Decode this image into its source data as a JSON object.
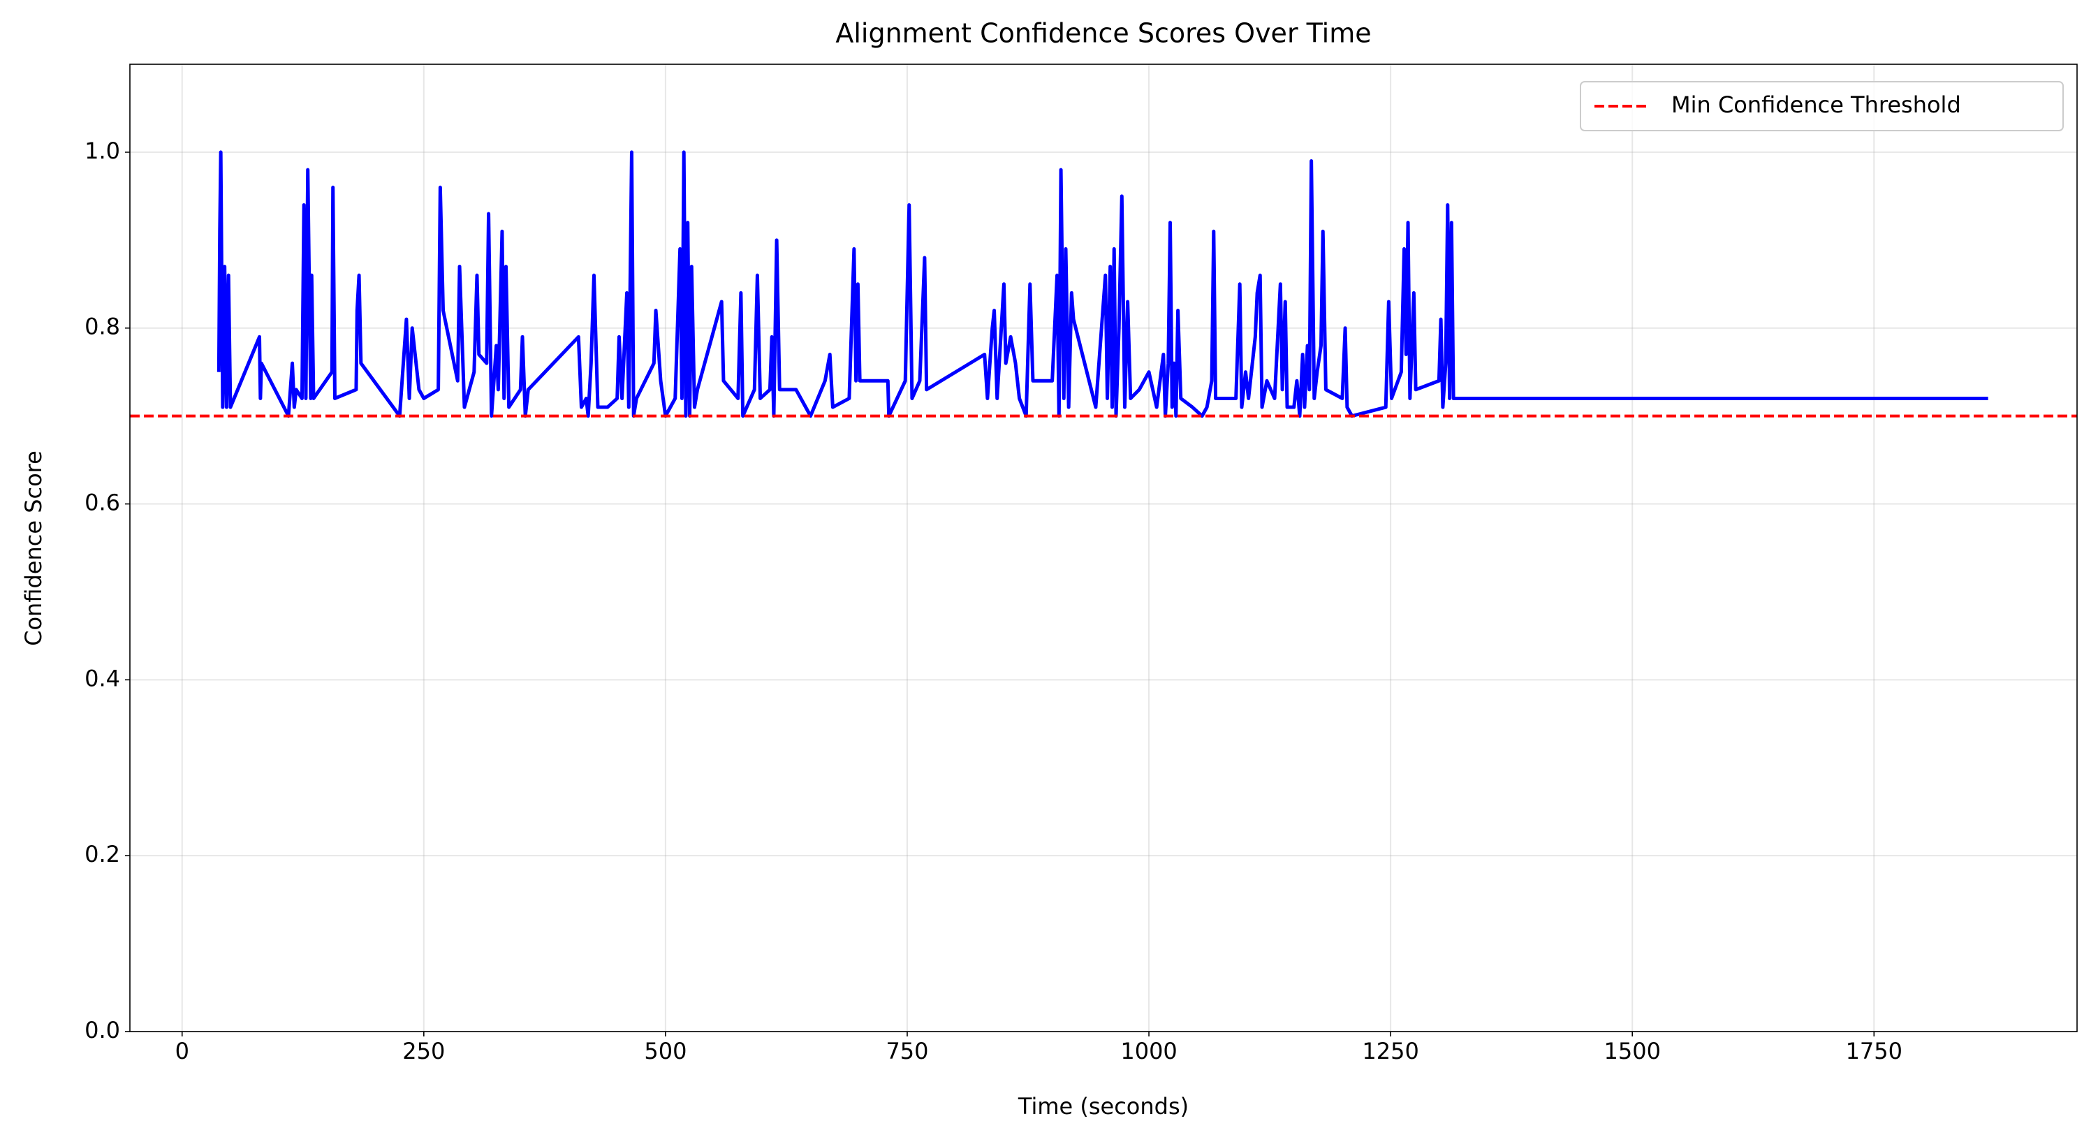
{
  "chart_data": {
    "type": "line",
    "title": "Alignment Confidence Scores Over Time",
    "x_label": "Time (seconds)",
    "y_label": "Confidence Score",
    "x": [
      38,
      39,
      40,
      42,
      44,
      46,
      48,
      50,
      80,
      81,
      82,
      110,
      114,
      116,
      118,
      124,
      126,
      128,
      130,
      133,
      134,
      136,
      155,
      156,
      158,
      180,
      181,
      183,
      185,
      225,
      232,
      235,
      238,
      245,
      250,
      265,
      267,
      270,
      285,
      287,
      292,
      302,
      305,
      307,
      315,
      317,
      320,
      325,
      327,
      331,
      333,
      335,
      338,
      350,
      352,
      355,
      358,
      410,
      413,
      418,
      420,
      423,
      426,
      430,
      440,
      450,
      452,
      455,
      460,
      462,
      465,
      467,
      470,
      488,
      490,
      495,
      500,
      510,
      515,
      517,
      519,
      521,
      523,
      525,
      527,
      530,
      533,
      558,
      560,
      575,
      578,
      580,
      592,
      595,
      598,
      608,
      610,
      612,
      615,
      618,
      635,
      650,
      665,
      670,
      673,
      690,
      695,
      697,
      699,
      701,
      730,
      731,
      748,
      752,
      755,
      763,
      768,
      770,
      830,
      833,
      838,
      840,
      843,
      850,
      852,
      857,
      862,
      866,
      873,
      877,
      880,
      900,
      905,
      907,
      909,
      912,
      914,
      917,
      920,
      922,
      945,
      955,
      957,
      960,
      962,
      964,
      966,
      969,
      972,
      975,
      978,
      981,
      990,
      1000,
      1008,
      1015,
      1017,
      1020,
      1022,
      1024,
      1026,
      1028,
      1030,
      1033,
      1045,
      1055,
      1060,
      1065,
      1067,
      1069,
      1080,
      1090,
      1094,
      1096,
      1100,
      1103,
      1110,
      1112,
      1115,
      1117,
      1122,
      1130,
      1136,
      1138,
      1141,
      1143,
      1150,
      1153,
      1156,
      1159,
      1161,
      1164,
      1166,
      1168,
      1171,
      1174,
      1178,
      1180,
      1183,
      1200,
      1203,
      1205,
      1210,
      1245,
      1248,
      1251,
      1261,
      1264,
      1266,
      1268,
      1270,
      1274,
      1276,
      1300,
      1302,
      1304,
      1307,
      1309,
      1311,
      1313,
      1315,
      1868
    ],
    "series": [
      {
        "color": "#0000ff",
        "values": [
          0.75,
          0.91,
          1.0,
          0.71,
          0.87,
          0.71,
          0.86,
          0.71,
          0.79,
          0.72,
          0.76,
          0.7,
          0.76,
          0.71,
          0.73,
          0.72,
          0.94,
          0.72,
          0.98,
          0.72,
          0.86,
          0.72,
          0.75,
          0.96,
          0.72,
          0.73,
          0.82,
          0.86,
          0.76,
          0.7,
          0.81,
          0.72,
          0.8,
          0.73,
          0.72,
          0.73,
          0.96,
          0.82,
          0.74,
          0.87,
          0.71,
          0.75,
          0.86,
          0.77,
          0.76,
          0.93,
          0.7,
          0.78,
          0.73,
          0.91,
          0.72,
          0.87,
          0.71,
          0.73,
          0.79,
          0.7,
          0.73,
          0.79,
          0.71,
          0.72,
          0.7,
          0.76,
          0.86,
          0.71,
          0.71,
          0.72,
          0.79,
          0.72,
          0.84,
          0.71,
          1.0,
          0.7,
          0.72,
          0.76,
          0.82,
          0.74,
          0.7,
          0.72,
          0.89,
          0.72,
          1.0,
          0.7,
          0.92,
          0.7,
          0.87,
          0.71,
          0.73,
          0.83,
          0.74,
          0.72,
          0.84,
          0.7,
          0.73,
          0.86,
          0.72,
          0.73,
          0.79,
          0.7,
          0.9,
          0.73,
          0.73,
          0.7,
          0.74,
          0.77,
          0.71,
          0.72,
          0.89,
          0.74,
          0.85,
          0.74,
          0.74,
          0.7,
          0.74,
          0.94,
          0.72,
          0.74,
          0.88,
          0.73,
          0.77,
          0.72,
          0.8,
          0.82,
          0.72,
          0.85,
          0.76,
          0.79,
          0.76,
          0.72,
          0.7,
          0.85,
          0.74,
          0.74,
          0.86,
          0.7,
          0.98,
          0.72,
          0.89,
          0.71,
          0.84,
          0.81,
          0.71,
          0.86,
          0.72,
          0.87,
          0.71,
          0.89,
          0.7,
          0.8,
          0.95,
          0.71,
          0.83,
          0.72,
          0.73,
          0.75,
          0.71,
          0.77,
          0.7,
          0.76,
          0.92,
          0.71,
          0.76,
          0.7,
          0.82,
          0.72,
          0.71,
          0.7,
          0.71,
          0.74,
          0.91,
          0.72,
          0.72,
          0.72,
          0.85,
          0.71,
          0.75,
          0.72,
          0.79,
          0.84,
          0.86,
          0.71,
          0.74,
          0.72,
          0.85,
          0.73,
          0.83,
          0.71,
          0.71,
          0.74,
          0.7,
          0.77,
          0.71,
          0.78,
          0.73,
          0.99,
          0.72,
          0.75,
          0.78,
          0.91,
          0.73,
          0.72,
          0.8,
          0.71,
          0.7,
          0.71,
          0.83,
          0.72,
          0.75,
          0.89,
          0.77,
          0.92,
          0.72,
          0.84,
          0.73,
          0.74,
          0.81,
          0.71,
          0.76,
          0.94,
          0.72,
          0.92,
          0.72,
          0.72
        ]
      }
    ],
    "threshold": {
      "value": 0.7,
      "label": "Min Confidence Threshold",
      "color": "#ff0000"
    },
    "xlim": [
      -54,
      1960
    ],
    "ylim": [
      0,
      1.1
    ],
    "xticks": [
      0,
      250,
      500,
      750,
      1000,
      1250,
      1500,
      1750
    ],
    "yticks": [
      {
        "value": 0,
        "label": "0.0"
      },
      0.2,
      0.4,
      0.6,
      0.8,
      {
        "value": 1,
        "label": "1.0"
      }
    ],
    "grid": true,
    "legend": "upper right"
  }
}
